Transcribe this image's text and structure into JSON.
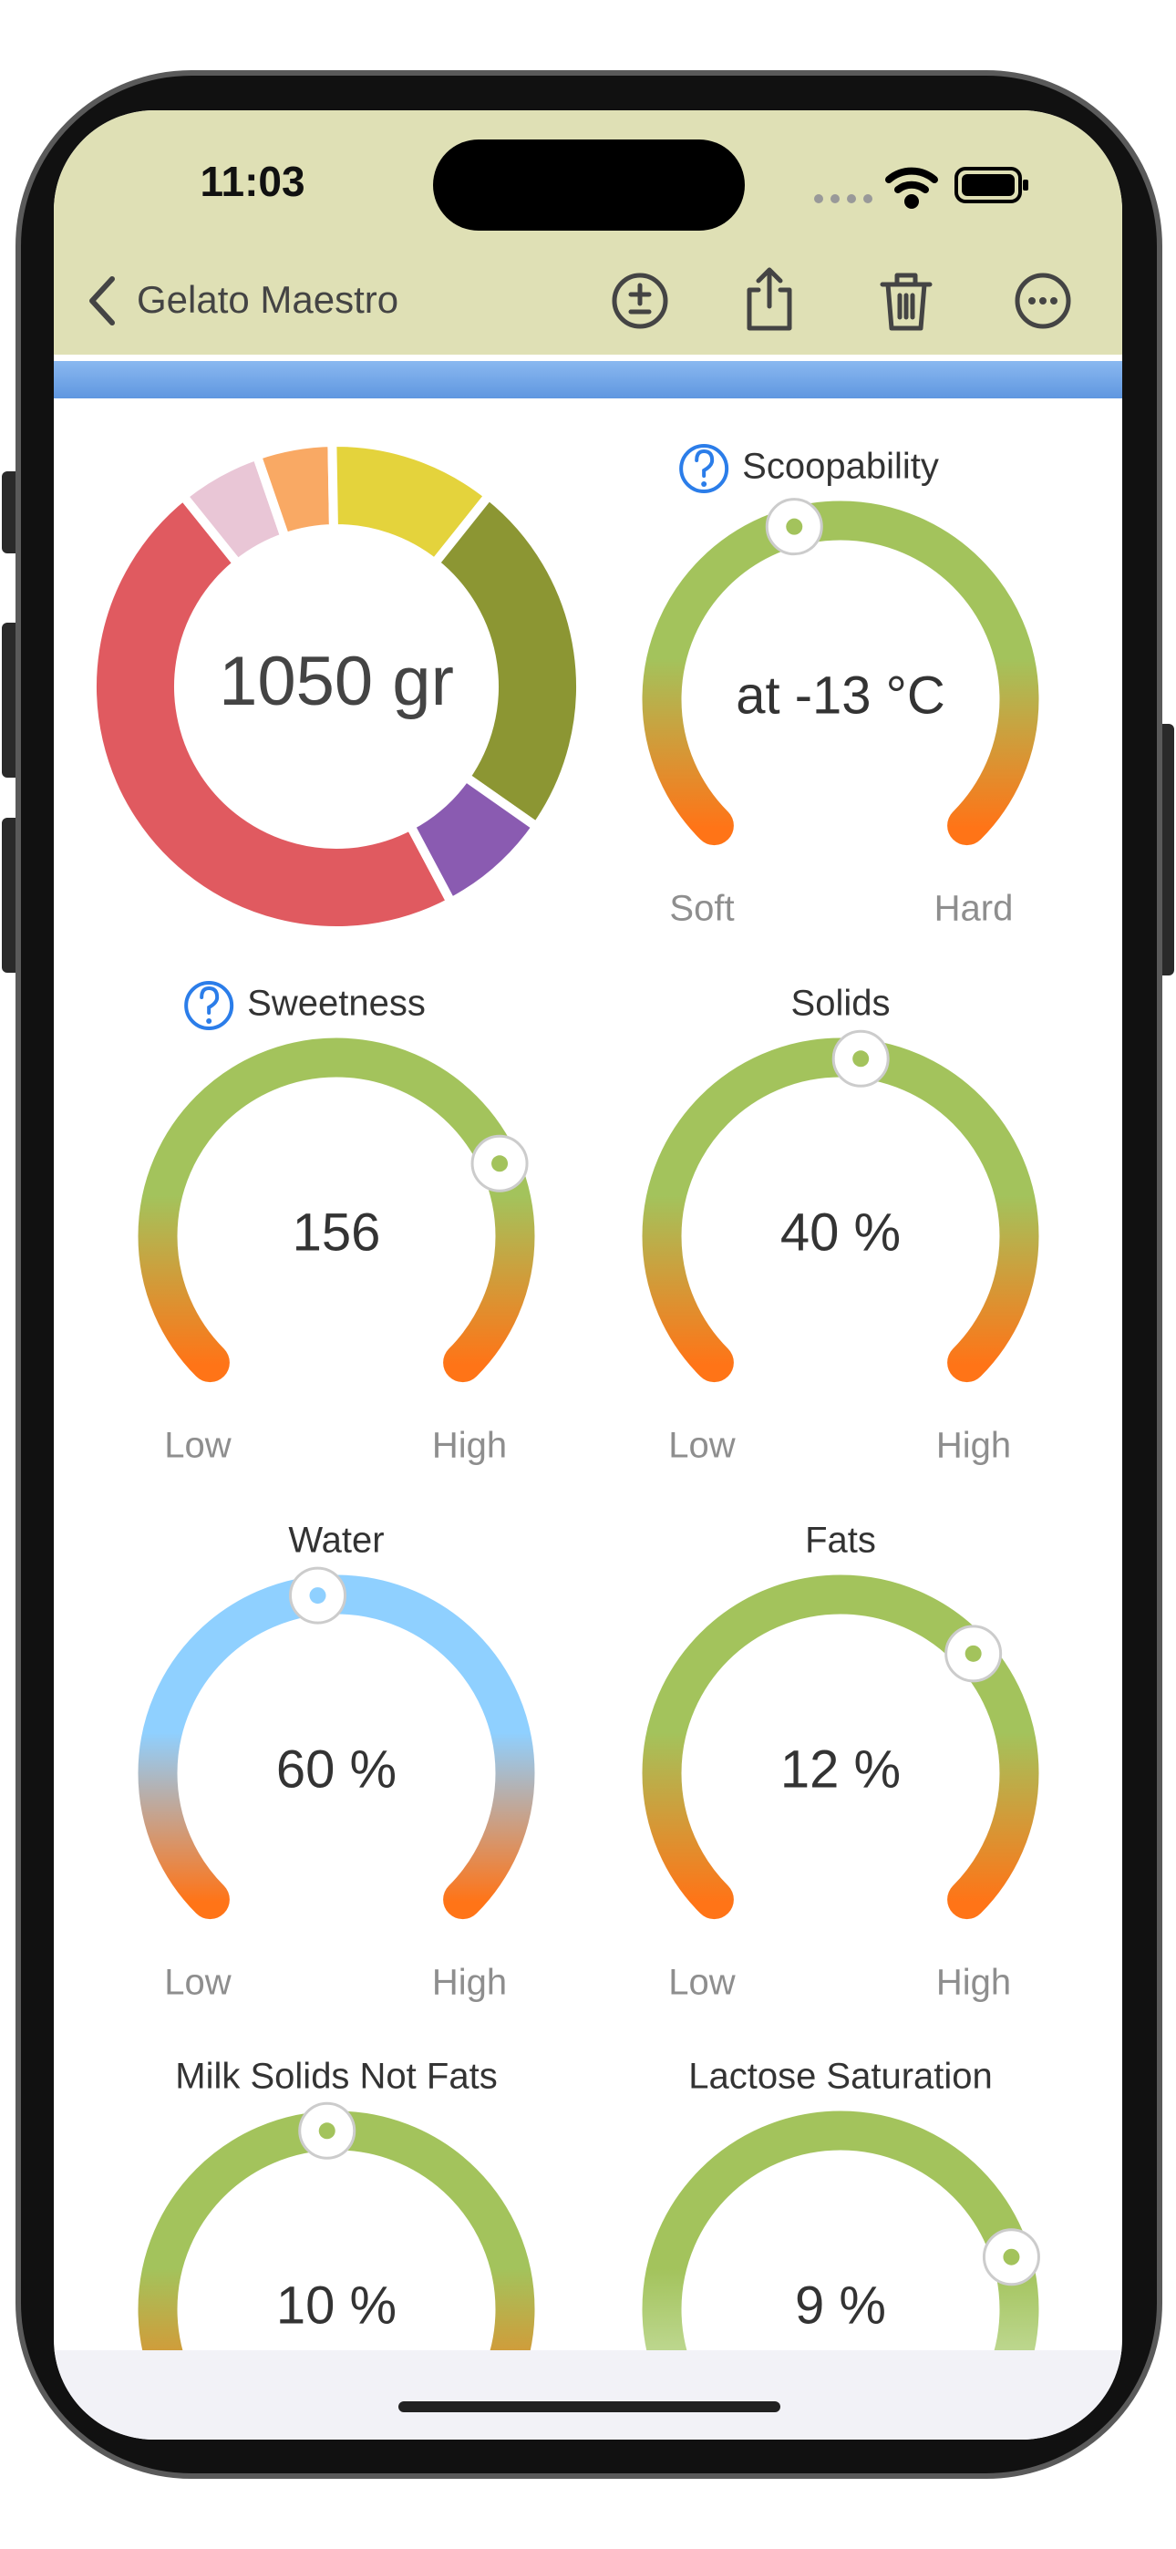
{
  "status_bar": {
    "time": "11:03"
  },
  "nav": {
    "back_title": "Gelato Maestro"
  },
  "donut": {
    "center_label": "1050 gr",
    "segments": [
      {
        "color": "#e05a60",
        "value": 47
      },
      {
        "color": "#e9c6d6",
        "value": 5.5
      },
      {
        "color": "#f9a964",
        "value": 5
      },
      {
        "color": "#e4d33c",
        "value": 11
      },
      {
        "color": "#8c9633",
        "value": 24
      },
      {
        "color": "#8a5bb1",
        "value": 7.5
      }
    ]
  },
  "gauges": [
    {
      "title": "Scoopability",
      "help": true,
      "value_label": "at -13 °C",
      "min_label": "Soft",
      "max_label": "Hard",
      "colors": [
        "#a3c35c",
        "#ff7417"
      ]
    },
    {
      "title": "Sweetness",
      "help": true,
      "value_label": "156",
      "min_label": "Low",
      "max_label": "High",
      "colors": [
        "#a3c35c",
        "#ff7417"
      ]
    },
    {
      "title": "Solids",
      "help": false,
      "value_label": "40 %",
      "min_label": "Low",
      "max_label": "High",
      "colors": [
        "#a3c35c",
        "#ff7417"
      ]
    },
    {
      "title": "Water",
      "help": false,
      "value_label": "60 %",
      "min_label": "Low",
      "max_label": "High",
      "colors": [
        "#8fd0ff",
        "#ff7417"
      ]
    },
    {
      "title": "Fats",
      "help": false,
      "value_label": "12 %",
      "min_label": "Low",
      "max_label": "High",
      "colors": [
        "#a3c35c",
        "#ff7417"
      ]
    },
    {
      "title": "Milk Solids Not Fats",
      "help": false,
      "value_label": "10 %",
      "colors": [
        "#a3c35c",
        "#ff7417"
      ]
    },
    {
      "title": "Lactose Saturation",
      "help": false,
      "value_label": "9 %",
      "colors": [
        "#a3c35c",
        "#d8ecc4"
      ]
    }
  ]
}
